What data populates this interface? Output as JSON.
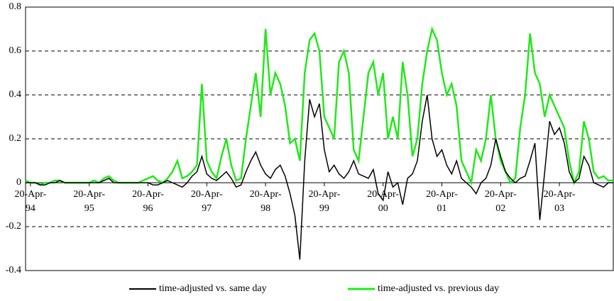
{
  "chart_data": {
    "type": "line",
    "categories": [
      null,
      "20-Apr-94",
      null,
      null,
      null,
      null,
      null,
      null,
      null,
      null,
      null,
      null,
      null,
      "20-Apr-95",
      null,
      null,
      null,
      null,
      null,
      null,
      null,
      null,
      null,
      null,
      null,
      "20-Apr-96",
      null,
      null,
      null,
      null,
      null,
      null,
      null,
      null,
      null,
      null,
      null,
      "20-Apr-97",
      null,
      null,
      null,
      null,
      null,
      null,
      null,
      null,
      null,
      null,
      null,
      "20-Apr-98",
      null,
      null,
      null,
      null,
      null,
      null,
      null,
      null,
      null,
      null,
      null,
      "20-Apr-99",
      null,
      null,
      null,
      null,
      null,
      null,
      null,
      null,
      null,
      null,
      null,
      "20-Apr-00",
      null,
      null,
      null,
      null,
      null,
      null,
      null,
      null,
      null,
      null,
      null,
      "20-Apr-01",
      null,
      null,
      null,
      null,
      null,
      null,
      null,
      null,
      null,
      null,
      null,
      "20-Apr-02",
      null,
      null,
      null,
      null,
      null,
      null,
      null,
      null,
      null,
      null,
      null,
      "20-Apr-03",
      null,
      null,
      null,
      null,
      null,
      null,
      null,
      null,
      null,
      null,
      null
    ],
    "series": [
      {
        "name": "time-adjusted vs. same day",
        "color": "#000000",
        "values": [
          0,
          0,
          0,
          -0.01,
          -0.01,
          0,
          0,
          0.01,
          0,
          0,
          0,
          0,
          0,
          0,
          0,
          0,
          0.01,
          0.02,
          0,
          0,
          0,
          0,
          0,
          0,
          0,
          0,
          -0.01,
          -0.01,
          0,
          0.01,
          0,
          -0.01,
          -0.02,
          0,
          0.03,
          0.05,
          0.12,
          0.04,
          0.02,
          0.01,
          0.03,
          0.05,
          0.02,
          -0.02,
          -0.01,
          0.05,
          0.1,
          0.14,
          0.08,
          0.04,
          0.02,
          0.06,
          0.08,
          0.03,
          -0.05,
          -0.15,
          -0.35,
          0.1,
          0.38,
          0.3,
          0.36,
          0.15,
          0.05,
          0.08,
          0.04,
          0.02,
          0.05,
          0.1,
          0.04,
          0.03,
          0.02,
          0.06,
          -0.05,
          -0.08,
          0.05,
          -0.02,
          0,
          -0.1,
          0.02,
          0.04,
          0.1,
          0.28,
          0.4,
          0.2,
          0.12,
          0.15,
          0.08,
          0.04,
          0.1,
          0.02,
          0,
          -0.02,
          -0.05,
          0,
          0.02,
          0.08,
          0.2,
          0.12,
          0.05,
          0.02,
          0,
          0.02,
          0.03,
          0.1,
          0.18,
          -0.17,
          0.05,
          0.28,
          0.22,
          0.25,
          0.18,
          0.05,
          0,
          0.02,
          0.12,
          0.08,
          0,
          -0.01,
          -0.02,
          0,
          0
        ]
      },
      {
        "name": "time-adjusted vs. previous day",
        "color": "#22e81a",
        "values": [
          0.01,
          0,
          0,
          -0.01,
          0,
          0,
          0.01,
          0.01,
          0,
          0,
          0,
          0,
          0,
          0,
          0.01,
          0,
          0.02,
          0.03,
          0.01,
          0,
          0,
          0,
          0,
          0,
          0.01,
          0.02,
          0.03,
          0.01,
          0,
          0.02,
          0.05,
          0.1,
          0.02,
          0.03,
          0.05,
          0.08,
          0.45,
          0.1,
          0.05,
          0.02,
          0.12,
          0.2,
          0.08,
          0.01,
          0.02,
          0.2,
          0.35,
          0.5,
          0.3,
          0.7,
          0.4,
          0.5,
          0.45,
          0.35,
          0.18,
          0.2,
          0.1,
          0.5,
          0.65,
          0.68,
          0.6,
          0.3,
          0.25,
          0.2,
          0.55,
          0.6,
          0.5,
          0.15,
          0.1,
          0.3,
          0.5,
          0.55,
          0.4,
          0.5,
          0.2,
          0.3,
          0.2,
          0.55,
          0.4,
          0.12,
          0.2,
          0.45,
          0.6,
          0.7,
          0.65,
          0.5,
          0.4,
          0.45,
          0.35,
          0.1,
          0.05,
          0,
          0.15,
          0.1,
          0.2,
          0.4,
          0.2,
          0.1,
          0.05,
          0,
          0.02,
          0.25,
          0.4,
          0.68,
          0.5,
          0.45,
          0.3,
          0.4,
          0.35,
          0.3,
          0.25,
          0.1,
          0,
          0.05,
          0.28,
          0.2,
          0.05,
          0.02,
          0.03,
          0.01,
          0.01
        ]
      }
    ],
    "ylim": [
      -0.4,
      0.8
    ],
    "yticks": [
      -0.4,
      -0.2,
      0,
      0.2,
      0.4,
      0.6,
      0.8
    ],
    "grid": true
  }
}
